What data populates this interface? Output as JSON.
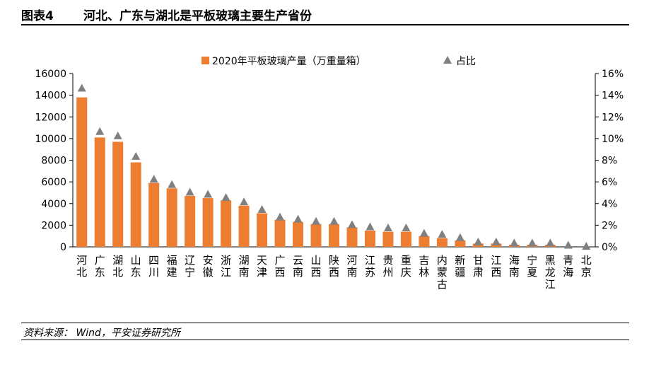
{
  "figure": {
    "number": "图表4",
    "title": "河北、广东与湖北是平板玻璃主要生产省份",
    "source": "资料来源： Wind，平安证券研究所"
  },
  "colors": {
    "bar": "#ED7D31",
    "marker": "#808080"
  },
  "chart_data": {
    "type": "bar",
    "categories": [
      "河北",
      "广东",
      "湖北",
      "山东",
      "四川",
      "福建",
      "辽宁",
      "安徽",
      "浙江",
      "湖南",
      "天津",
      "广西",
      "云南",
      "山西",
      "陕西",
      "河南",
      "江苏",
      "贵州",
      "重庆",
      "吉林",
      "内蒙古",
      "新疆",
      "甘肃",
      "江西",
      "海南",
      "宁夏",
      "黑龙江",
      "青海",
      "北京"
    ],
    "series": [
      {
        "name": "2020年平板玻璃产量（万重量箱）",
        "type": "bar",
        "axis": "left",
        "values": [
          13800,
          10100,
          9700,
          7800,
          5900,
          5400,
          4700,
          4500,
          4300,
          3800,
          3100,
          2500,
          2300,
          2100,
          2100,
          1800,
          1500,
          1400,
          1400,
          1000,
          800,
          600,
          300,
          300,
          200,
          200,
          200,
          0,
          0
        ]
      },
      {
        "name": "占比",
        "type": "scatter",
        "marker": "triangle",
        "axis": "right",
        "values": [
          14.6,
          10.6,
          10.2,
          8.3,
          6.2,
          5.7,
          5.0,
          4.8,
          4.5,
          4.1,
          3.4,
          2.7,
          2.5,
          2.3,
          2.3,
          2.0,
          1.8,
          1.7,
          1.7,
          1.2,
          1.1,
          0.8,
          0.4,
          0.4,
          0.3,
          0.3,
          0.3,
          0.1,
          0.0
        ]
      }
    ],
    "yticks_left": [
      "0",
      "2000",
      "4000",
      "6000",
      "8000",
      "10000",
      "12000",
      "14000",
      "16000"
    ],
    "yticks_right": [
      "0%",
      "2%",
      "4%",
      "6%",
      "8%",
      "10%",
      "12%",
      "14%",
      "16%"
    ],
    "ylim_left": [
      0,
      16000
    ],
    "ylim_right": [
      0,
      16
    ],
    "legend_position": "top-center",
    "grid": false
  }
}
